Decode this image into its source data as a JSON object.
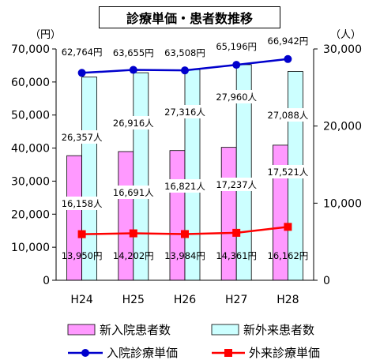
{
  "chart_data": {
    "type": "bar",
    "title": "診療単価・患者数推移",
    "categories": [
      "H24",
      "H25",
      "H26",
      "H27",
      "H28"
    ],
    "y_left": {
      "unit": "（円）",
      "range": [
        0,
        70000
      ],
      "ticks": [
        "0",
        "10,000",
        "20,000",
        "30,000",
        "40,000",
        "50,000",
        "60,000",
        "70,000"
      ]
    },
    "y_right": {
      "unit": "（人）",
      "range": [
        0,
        30000
      ],
      "ticks": [
        "0",
        "10,000",
        "20,000",
        "30,000"
      ]
    },
    "series": [
      {
        "name": "新入院患者数",
        "type": "bar",
        "axis": "right",
        "color": "#ff99ff",
        "values": [
          16158,
          16691,
          16821,
          17237,
          17521
        ],
        "labels": [
          "16,158人",
          "16,691人",
          "16,821人",
          "17,237人",
          "17,521人"
        ]
      },
      {
        "name": "新外来患者数",
        "type": "bar",
        "axis": "right",
        "color": "#ccffff",
        "values": [
          26357,
          26916,
          27316,
          27960,
          27088
        ],
        "labels": [
          "26,357人",
          "26,916人",
          "27,316人",
          "27,960人",
          "27,088人"
        ]
      },
      {
        "name": "入院診療単価",
        "type": "line",
        "axis": "left",
        "color": "#0000cc",
        "values": [
          62764,
          63655,
          63508,
          65196,
          66942
        ],
        "labels": [
          "62,764円",
          "63,655円",
          "63,508円",
          "65,196円",
          "66,942円"
        ]
      },
      {
        "name": "外来診療単価",
        "type": "line",
        "axis": "left",
        "color": "#ff0000",
        "values": [
          13950,
          14202,
          13984,
          14361,
          16162
        ],
        "labels": [
          "13,950円",
          "14,202円",
          "13,984円",
          "14,361円",
          "16,162円"
        ]
      }
    ],
    "legend_position": "bottom",
    "grid": false
  }
}
